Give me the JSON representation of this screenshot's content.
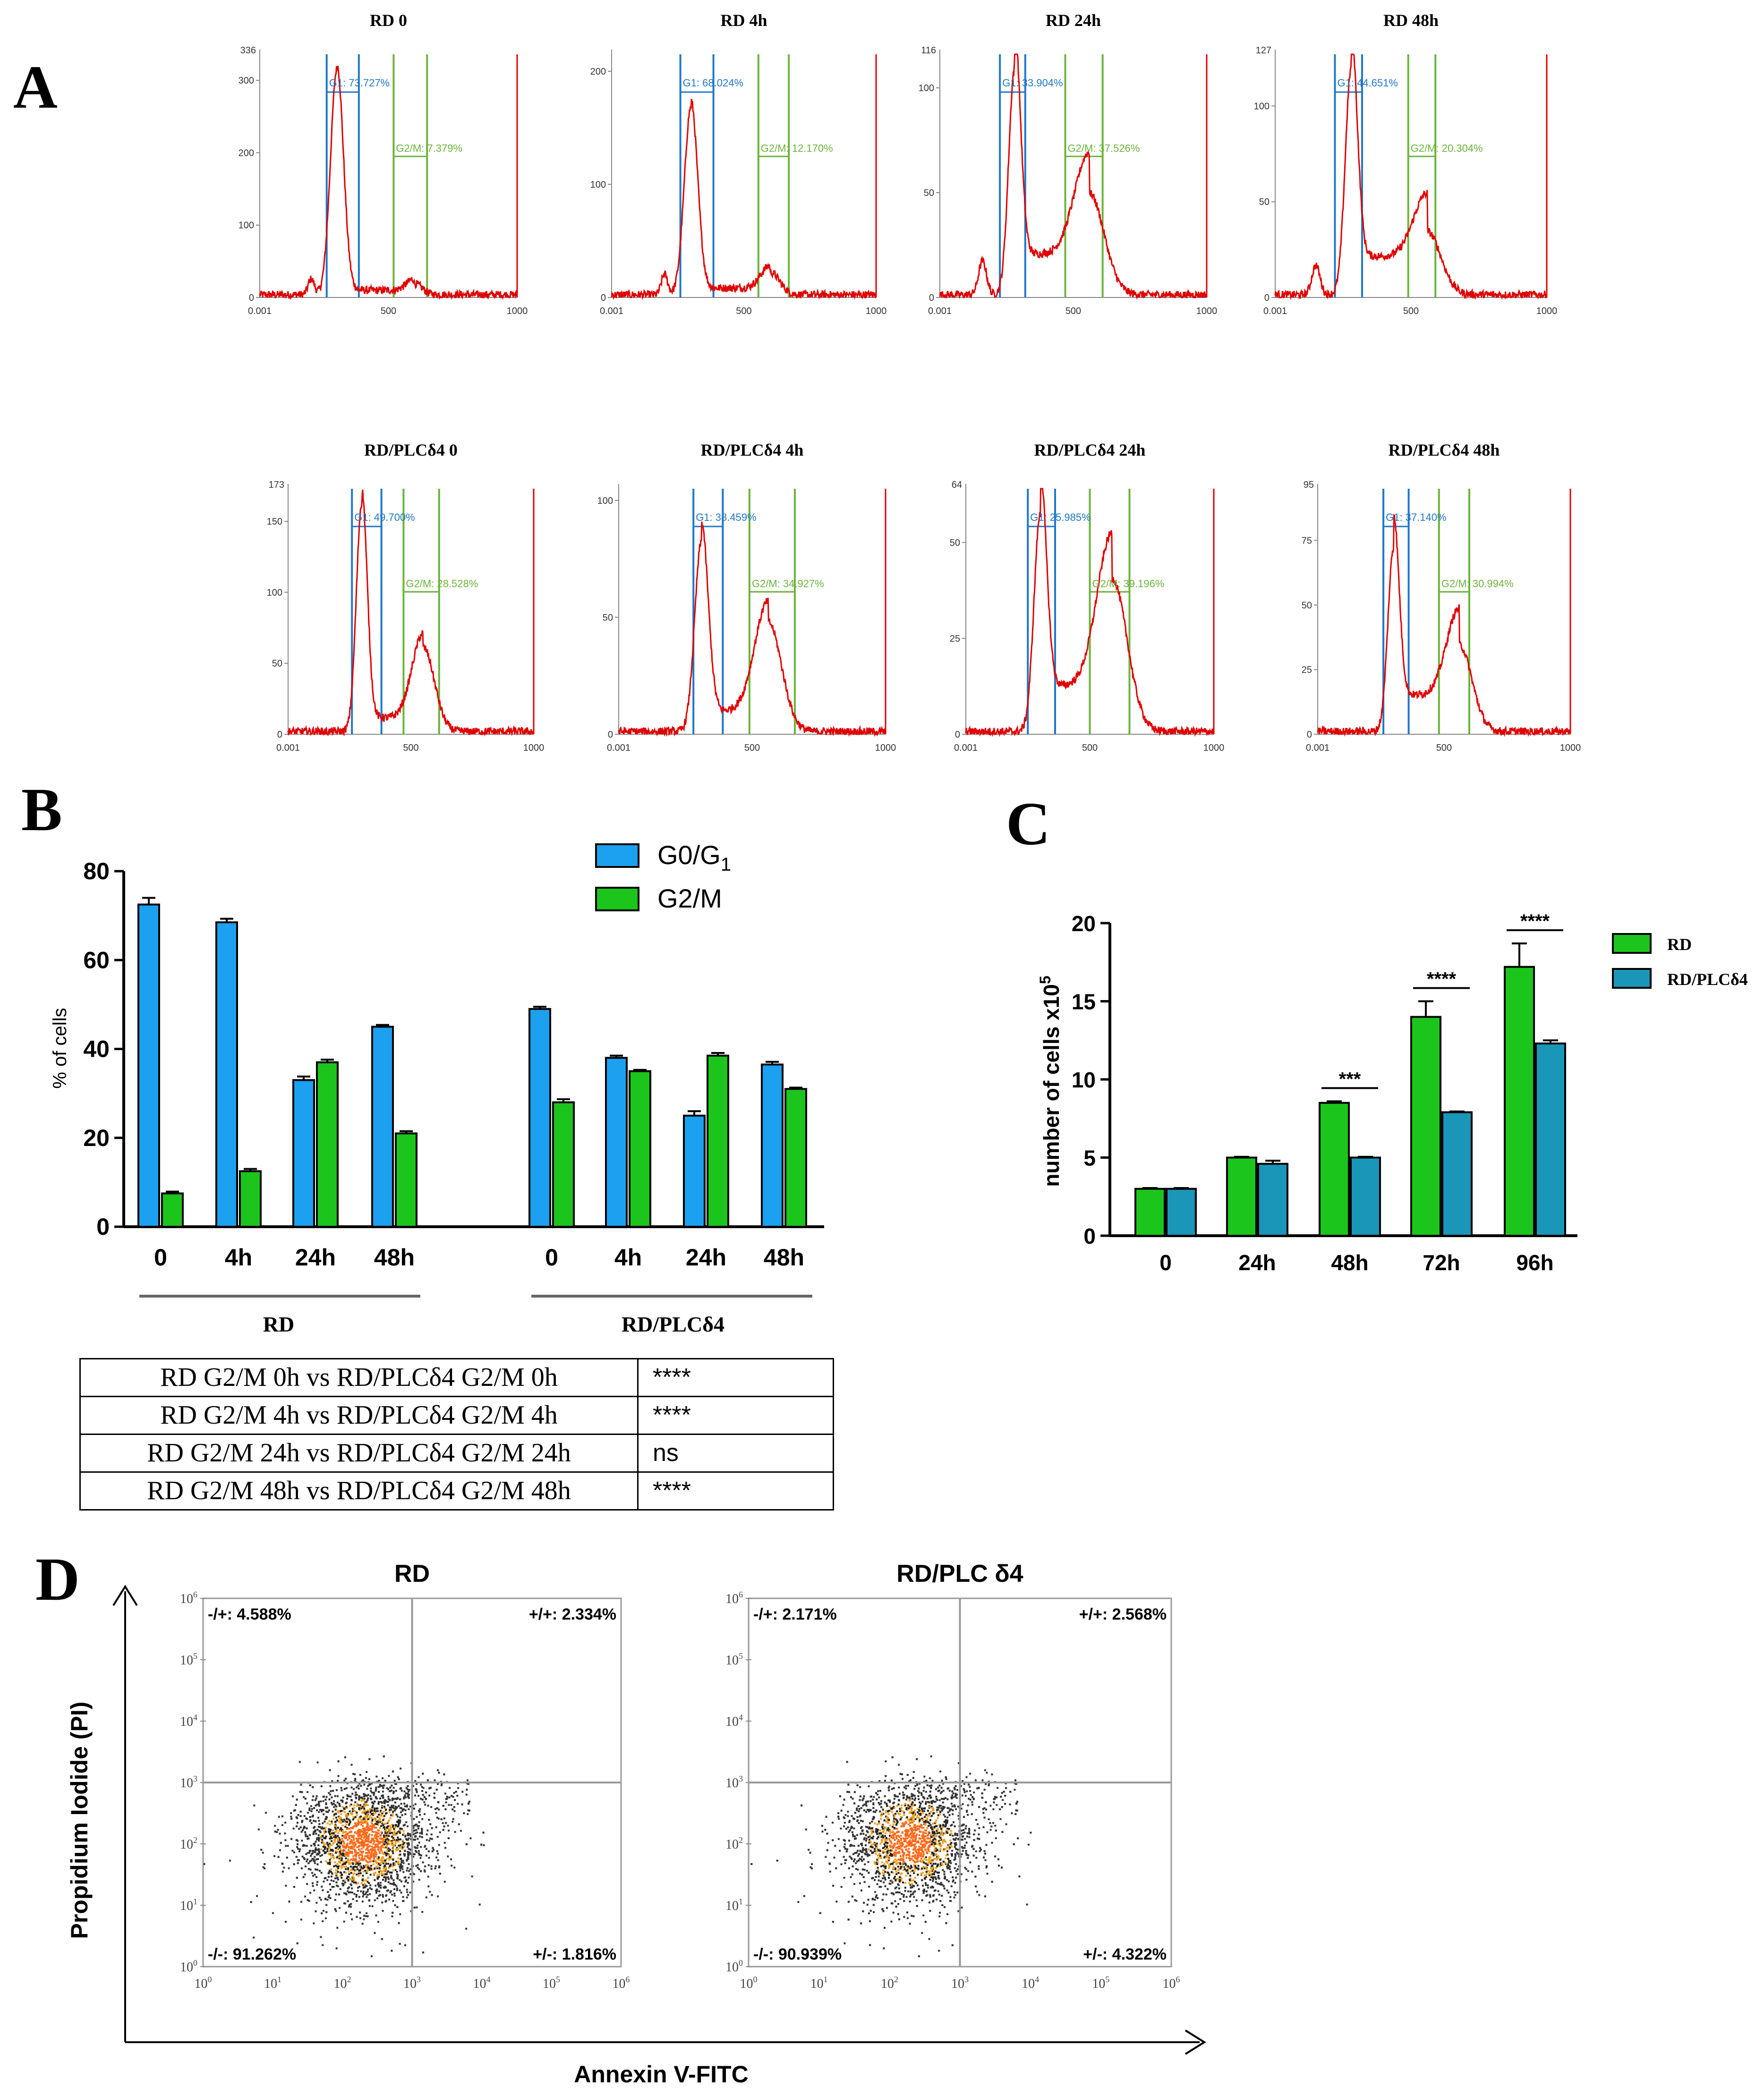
{
  "panel_labels": {
    "a": "A",
    "b": "B",
    "c": "C",
    "d": "D"
  },
  "colors": {
    "trace": "#e00000",
    "g1_gate": "#1f77c8",
    "g2m_gate": "#6bb33a",
    "g0g1_bar": "#1ba1ef",
    "g2m_bar": "#1cc51c",
    "plc_bar": "#1a96b8",
    "rd_bar_c": "#1cc51c",
    "axis": "#000000"
  },
  "chart_data": [
    {
      "type": "line",
      "title": "Cell cycle histograms (panel A)",
      "histograms": [
        {
          "title": "RD  0",
          "g1_label": "G1: 73.727%",
          "g2m_label": "G2/M: 7.379%",
          "g1_gate": [
            260,
            385
          ],
          "g2m_gate": [
            520,
            650
          ],
          "ymax_label": "336",
          "yticks": [
            "300",
            "200",
            "100",
            "0"
          ],
          "ytick_values": [
            300,
            200,
            100,
            0
          ],
          "ymax": 336,
          "xticks": [
            "0.001",
            "500",
            "1000"
          ],
          "peaks": [
            [
              300,
              1.0,
              25
            ],
            [
              600,
              0.05,
              30
            ],
            [
              200,
              0.07,
              12
            ]
          ],
          "sphase": 0.02
        },
        {
          "title": "RD  4h",
          "g1_label": "G1: 68.024%",
          "g2m_label": "G2/M: 12.170%",
          "g1_gate": [
            260,
            385
          ],
          "g2m_gate": [
            555,
            670
          ],
          "ymax_label": "",
          "yticks": [
            "200",
            "100",
            "0"
          ],
          "ytick_values": [
            200,
            100,
            0
          ],
          "ymax": 215,
          "xticks": [
            "0.001",
            "500",
            "1000"
          ],
          "peaks": [
            [
              300,
              0.83,
              25
            ],
            [
              600,
              0.1,
              35
            ],
            [
              200,
              0.09,
              12
            ]
          ],
          "sphase": 0.03
        },
        {
          "title": "RD  24h",
          "g1_label": "G1: 33.904%",
          "g2m_label": "G2/M: 37.526%",
          "g1_gate": [
            225,
            320
          ],
          "g2m_gate": [
            470,
            610
          ],
          "ymax_label": "116",
          "yticks": [
            "100",
            "50",
            "0"
          ],
          "ytick_values": [
            100,
            50,
            0
          ],
          "ymax": 116,
          "xticks": [
            "0.001",
            "500",
            "1000"
          ],
          "peaks": [
            [
              280,
              1.0,
              22
            ],
            [
              560,
              0.45,
              55
            ],
            [
              160,
              0.15,
              15
            ]
          ],
          "sphase": 0.18
        },
        {
          "title": "RD  48h",
          "g1_label": "G1: 44.651%",
          "g2m_label": "G2/M: 20.304%",
          "g1_gate": [
            220,
            320
          ],
          "g2m_gate": [
            490,
            590
          ],
          "ymax_label": "127",
          "yticks": [
            "100",
            "50",
            "0"
          ],
          "ytick_values": [
            100,
            50,
            0
          ],
          "ymax": 127,
          "xticks": [
            "0.001",
            "500",
            "1000"
          ],
          "peaks": [
            [
              280,
              1.0,
              22
            ],
            [
              560,
              0.28,
              50
            ],
            [
              150,
              0.13,
              15
            ]
          ],
          "sphase": 0.17
        }
      ],
      "histograms_plc": [
        {
          "title": "RD/PLCδ4 0",
          "g1_label": "G1: 49.700%",
          "g2m_label": "G2/M: 28.528%",
          "g1_gate": [
            260,
            380
          ],
          "g2m_gate": [
            470,
            615
          ],
          "ymax_label": "173",
          "yticks": [
            "150",
            "100",
            "50",
            "0"
          ],
          "ytick_values": [
            150,
            100,
            50,
            0
          ],
          "ymax": 173,
          "xticks": [
            "0.001",
            "500",
            "1000"
          ],
          "peaks": [
            [
              300,
              1.0,
              22
            ],
            [
              550,
              0.37,
              45
            ]
          ],
          "sphase": 0.06
        },
        {
          "title": "RD/PLCδ4 4h",
          "g1_label": "G1: 38.459%",
          "g2m_label": "G2/M: 34.927%",
          "g1_gate": [
            280,
            390
          ],
          "g2m_gate": [
            490,
            660
          ],
          "ymax_label": "",
          "yticks": [
            "100",
            "50",
            "0"
          ],
          "ytick_values": [
            100,
            50,
            0
          ],
          "ymax": 105,
          "xticks": [
            "0.001",
            "500",
            "1000"
          ],
          "peaks": [
            [
              310,
              0.83,
              25
            ],
            [
              560,
              0.48,
              50
            ]
          ],
          "sphase": 0.09
        },
        {
          "title": "RD/PLCδ4 24h",
          "g1_label": "G1: 25.985%",
          "g2m_label": "G2/M: 39.196%",
          "g1_gate": [
            250,
            360
          ],
          "g2m_gate": [
            500,
            660
          ],
          "ymax_label": "64",
          "yticks": [
            "50",
            "25",
            "0"
          ],
          "ytick_values": [
            50,
            25,
            0
          ],
          "ymax": 64,
          "xticks": [
            "0.001",
            "500",
            "1000"
          ],
          "peaks": [
            [
              300,
              0.95,
              25
            ],
            [
              590,
              0.67,
              60
            ]
          ],
          "sphase": 0.2
        },
        {
          "title": "RD/PLCδ4 48h",
          "g1_label": "G1: 37.140%",
          "g2m_label": "G2/M: 30.994%",
          "g1_gate": [
            260,
            360
          ],
          "g2m_gate": [
            480,
            600
          ],
          "ymax_label": "95",
          "yticks": [
            "75",
            "50",
            "25",
            "0"
          ],
          "ytick_values": [
            75,
            50,
            25,
            0
          ],
          "ymax": 95,
          "xticks": [
            "0.001",
            "500",
            "1000"
          ],
          "peaks": [
            [
              300,
              0.8,
              22
            ],
            [
              560,
              0.38,
              50
            ]
          ],
          "sphase": 0.16
        }
      ]
    },
    {
      "type": "bar",
      "title": "",
      "ylabel": "% of cells",
      "ylim": [
        0,
        80
      ],
      "yticks": [
        0,
        20,
        40,
        60,
        80
      ],
      "categories": [
        "0",
        "4h",
        "24h",
        "48h",
        "0",
        "4h",
        "24h",
        "48h"
      ],
      "groups": [
        "RD",
        "RD/PLCδ4"
      ],
      "series": [
        {
          "name": "G0/G",
          "sub": "1",
          "values": [
            72.5,
            68.5,
            33,
            45,
            49,
            38,
            25,
            36.5
          ],
          "errors": [
            1.5,
            0.8,
            0.8,
            0.4,
            0.5,
            0.5,
            1,
            0.6
          ]
        },
        {
          "name": "G2/M",
          "sub": "",
          "values": [
            7.5,
            12.5,
            37,
            21,
            28,
            35,
            38.5,
            31
          ],
          "errors": [
            0.4,
            0.5,
            0.6,
            0.5,
            0.7,
            0.3,
            0.6,
            0.3
          ]
        }
      ],
      "legend": "top-right",
      "table": [
        {
          "comparison": "RD G2/M 0h vs RD/PLCδ4 G2/M 0h",
          "sig": "****"
        },
        {
          "comparison": "RD G2/M 4h vs RD/PLCδ4 G2/M 4h",
          "sig": "****"
        },
        {
          "comparison": "RD G2/M 24h vs RD/PLCδ4 G2/M 24h",
          "sig": "ns"
        },
        {
          "comparison": "RD G2/M 48h vs RD/PLCδ4 G2/M 48h",
          "sig": "****"
        }
      ]
    },
    {
      "type": "bar",
      "title": "",
      "ylabel": "number of cells x10",
      "ylabel_sup": "5",
      "ylim": [
        0,
        20
      ],
      "yticks": [
        0,
        5,
        10,
        15,
        20
      ],
      "categories": [
        "0",
        "24h",
        "48h",
        "72h",
        "96h"
      ],
      "series": [
        {
          "name": "RD",
          "values": [
            3,
            5,
            8.5,
            14,
            17.2
          ],
          "errors": [
            0.05,
            0.05,
            0.1,
            1,
            1.5
          ]
        },
        {
          "name": "RD/PLCδ4",
          "values": [
            3,
            4.6,
            5,
            7.9,
            12.3
          ],
          "errors": [
            0.05,
            0.2,
            0.05,
            0.05,
            0.2
          ]
        }
      ],
      "significance": [
        "",
        "",
        "***",
        "****",
        "****"
      ],
      "legend": "top-right"
    },
    {
      "type": "scatter",
      "xlabel": "Annexin V-FITC",
      "ylabel": "Propidium Iodide (PI)",
      "axis_ticks": [
        "10",
        "10",
        "10",
        "10",
        "10",
        "10",
        "10"
      ],
      "axis_exponents": [
        "0",
        "1",
        "2",
        "3",
        "4",
        "5",
        "6"
      ],
      "plots": [
        {
          "title": "RD",
          "ul": "-/+: 4.588%",
          "ur": "+/+: 2.334%",
          "ll": "-/-: 91.262%",
          "lr": "+/-: 1.816%"
        },
        {
          "title": "RD/PLC δ4",
          "ul": "-/+: 2.171%",
          "ur": "+/+: 2.568%",
          "ll": "-/-: 90.939%",
          "lr": "+/-: 4.322%"
        }
      ]
    }
  ]
}
